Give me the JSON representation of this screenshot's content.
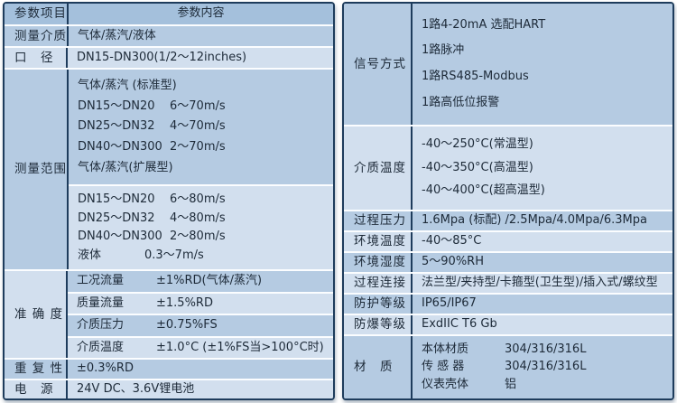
{
  "colors": {
    "border": "#1e3c5c",
    "header_row": "#a4c0dc",
    "band_medium": "#b5cbe2",
    "band_light": "#d2dfee",
    "separator": "#fbfdff",
    "text": "#1d2a38"
  },
  "left": {
    "header": {
      "item": "参数项目",
      "content": "参数内容"
    },
    "measuring_medium": {
      "label": "测量介质",
      "value": "气体/蒸汽/液体"
    },
    "diameter": {
      "label": "口　径",
      "value": "DN15-DN300(1/2～12inches)"
    },
    "range": {
      "label": "测量范围",
      "std_title": "气体/蒸汽 (标准型)",
      "std": [
        {
          "name": "DN15～DN20",
          "value": "6～70m/s"
        },
        {
          "name": "DN25～DN32",
          "value": "4～70m/s"
        },
        {
          "name": "DN40～DN300",
          "value": "2～70m/s"
        }
      ],
      "ext_title": "气体/蒸汽(扩展型)",
      "ext": [
        {
          "name": "DN15～DN20",
          "value": "6～80m/s"
        },
        {
          "name": "DN25～DN32",
          "value": "4～80m/s"
        },
        {
          "name": "DN40～DN300",
          "value": "2～80m/s"
        }
      ],
      "liquid": {
        "name": "液体",
        "value": "0.3～7m/s"
      }
    },
    "accuracy": {
      "label": "准 确 度",
      "rows": [
        {
          "name": "工况流量",
          "value": "±1%RD(气体/蒸汽)"
        },
        {
          "name": "质量流量",
          "value": "±1.5%RD"
        },
        {
          "name": "介质压力",
          "value": "±0.75%FS"
        },
        {
          "name": "介质温度",
          "value": "±1.0°C (±1%FS当>100°C时)"
        }
      ]
    },
    "repeatability": {
      "label": "重 复 性",
      "value": "±0.3%RD"
    },
    "power": {
      "label": "电　源",
      "value": "24V DC、3.6V锂电池"
    }
  },
  "right": {
    "signal": {
      "label": "信号方式",
      "lines": [
        "1路4-20mA 选配HART",
        "1路脉冲",
        "1路RS485-Modbus",
        "1路高低位报警"
      ]
    },
    "medium_temp": {
      "label": "介质温度",
      "lines": [
        "-40～250°C(常温型)",
        "-40～350°C(高温型)",
        "-40～400°C(超高温型)"
      ]
    },
    "process_pressure": {
      "label": "过程压力",
      "value": "1.6Mpa (标配) /2.5Mpa/4.0Mpa/6.3Mpa"
    },
    "ambient_temp": {
      "label": "环境温度",
      "value": "-40～85°C"
    },
    "ambient_humidity": {
      "label": "环境湿度",
      "value": "5～90%RH"
    },
    "process_connection": {
      "label": "过程连接",
      "value": "法兰型/夹持型/卡箍型(卫生型)/插入式/螺纹型"
    },
    "protection": {
      "label": "防护等级",
      "value": "IP65/IP67"
    },
    "explosion": {
      "label": "防爆等级",
      "value": "ExdIIC T6 Gb"
    },
    "material": {
      "label": "材　质",
      "rows": [
        {
          "name": "本体材质",
          "value": "304/316/316L"
        },
        {
          "name": "传 感 器",
          "value": "304/316/316L"
        },
        {
          "name": "仪表壳体",
          "value": "铝"
        }
      ]
    }
  }
}
